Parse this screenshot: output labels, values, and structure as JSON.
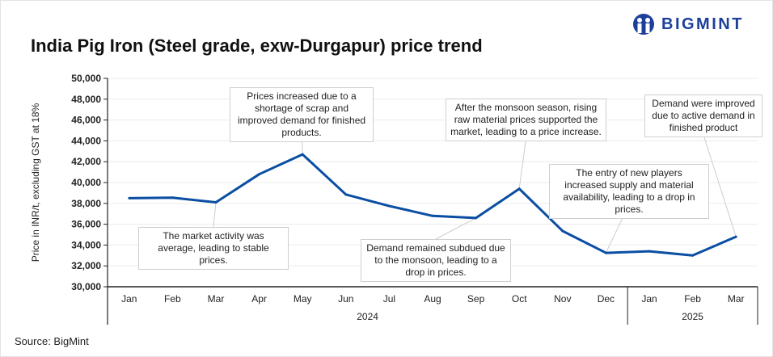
{
  "title": "India Pig Iron (Steel grade, exw-Durgapur) price trend",
  "logo_text": "BIGMINT",
  "source": "Source: BigMint",
  "colors": {
    "line": "#0a4ea3",
    "brand": "#1c3f9a"
  },
  "chart_data": {
    "type": "line",
    "title": "India Pig Iron (Steel grade, exw-Durgapur) price trend",
    "ylabel": "Price in INR/t, excluding GST at 18%",
    "xlabel": "",
    "ylim": [
      30000,
      50000
    ],
    "yticks": [
      "30,000",
      "32,000",
      "34,000",
      "36,000",
      "38,000",
      "40,000",
      "42,000",
      "44,000",
      "46,000",
      "48,000",
      "50,000"
    ],
    "categories": [
      "Jan",
      "Feb",
      "Mar",
      "Apr",
      "May",
      "Jun",
      "Jul",
      "Aug",
      "Sep",
      "Oct",
      "Nov",
      "Dec",
      "Jan",
      "Feb",
      "Mar"
    ],
    "years": [
      {
        "label": "2024",
        "count": 12
      },
      {
        "label": "2025",
        "count": 3
      }
    ],
    "series": [
      {
        "name": "Price",
        "values": [
          38500,
          38550,
          38100,
          40800,
          42700,
          38850,
          37750,
          36800,
          36600,
          39400,
          35350,
          33250,
          33400,
          33000,
          34800
        ]
      }
    ],
    "grid": true,
    "legend": "none",
    "annotations": [
      {
        "index": 4,
        "text": "Prices increased due to a shortage of scrap and improved demand for finished products."
      },
      {
        "index": 2,
        "text": "The market activity was average, leading to stable prices."
      },
      {
        "index": 8,
        "text": "Demand remained subdued due to the monsoon, leading to a drop in prices."
      },
      {
        "index": 9,
        "text": "After the monsoon season, rising raw material prices supported the market, leading to a price increase."
      },
      {
        "index": 11,
        "text": "The entry of new players increased supply and material availability, leading to a drop in prices."
      },
      {
        "index": 14,
        "text": "Demand were improved due to active demand in finished product"
      }
    ]
  }
}
